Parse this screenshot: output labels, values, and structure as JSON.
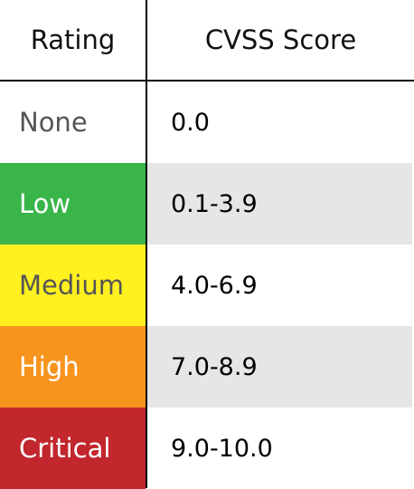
{
  "header": {
    "rating": "Rating",
    "score": "CVSS Score"
  },
  "rows": [
    {
      "rating": "None",
      "score": "0.0",
      "rating_bg": "#ffffff",
      "rating_color": "#555555",
      "score_bg": "#ffffff"
    },
    {
      "rating": "Low",
      "score": "0.1-3.9",
      "rating_bg": "#39b54a",
      "rating_color": "#ffffff",
      "score_bg": "#e6e6e6"
    },
    {
      "rating": "Medium",
      "score": "4.0-6.9",
      "rating_bg": "#fff01f",
      "rating_color": "#555555",
      "score_bg": "#ffffff"
    },
    {
      "rating": "High",
      "score": "7.0-8.9",
      "rating_bg": "#f7941d",
      "rating_color": "#ffffff",
      "score_bg": "#e6e6e6"
    },
    {
      "rating": "Critical",
      "score": "9.0-10.0",
      "rating_bg": "#c1272d",
      "rating_color": "#ffffff",
      "score_bg": "#ffffff"
    }
  ]
}
